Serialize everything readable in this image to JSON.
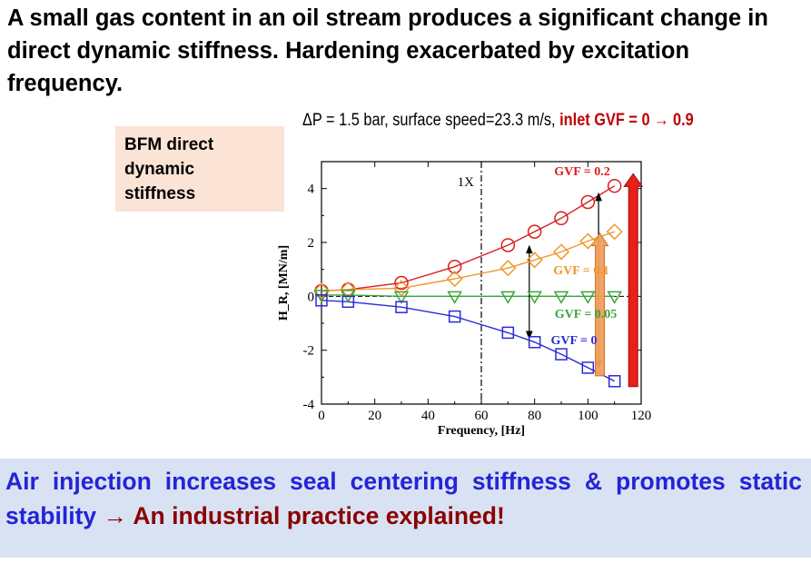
{
  "slide_title": "A small gas content in an oil stream produces a significant change in direct dynamic stiffness. Hardening exacerbated by excitation frequency.",
  "subtitle": {
    "prefix": "ΔP = 1.5 bar, surface speed=23.3 m/s, ",
    "highlight": "inlet GVF = 0 → 0.9"
  },
  "label_box": {
    "line1": "BFM direct",
    "line2": "dynamic",
    "line3": "stiffness"
  },
  "footer": {
    "blue_text": "Air injection increases seal centering stiffness & promotes static stability ",
    "arrow": "→",
    "red_text": " An industrial practice explained!"
  },
  "colors": {
    "red": "#d81e1e",
    "orange": "#f0962d",
    "green": "#3aa53a",
    "blue": "#2b2bd6",
    "bigArrow": "#e8201a",
    "orangeArrow": "#f2a05a"
  },
  "chart_data": {
    "type": "line",
    "xlabel": "Frequency, [Hz]",
    "ylabel": "H_R, [MN/m]",
    "xlim": [
      0,
      120
    ],
    "ylim": [
      -4,
      5
    ],
    "xticks": [
      0,
      20,
      40,
      60,
      80,
      100,
      120
    ],
    "yticks": [
      -4,
      -2,
      0,
      2,
      4
    ],
    "vline": {
      "x": 60,
      "label": "1X"
    },
    "series": [
      {
        "name": "GVF = 0.2",
        "color": "#d81e1e",
        "marker": "circle",
        "x": [
          0,
          10,
          30,
          50,
          70,
          80,
          90,
          100,
          110
        ],
        "y": [
          0.2,
          0.25,
          0.5,
          1.1,
          1.9,
          2.4,
          2.9,
          3.5,
          4.1
        ]
      },
      {
        "name": "GVF = 0.1",
        "color": "#f0962d",
        "marker": "diamond",
        "x": [
          0,
          10,
          30,
          50,
          70,
          80,
          90,
          100,
          110
        ],
        "y": [
          0.2,
          0.25,
          0.3,
          0.65,
          1.05,
          1.35,
          1.65,
          2.05,
          2.4
        ]
      },
      {
        "name": "GVF = 0.05",
        "color": "#3aa53a",
        "marker": "triangle-down",
        "x": [
          0,
          10,
          30,
          50,
          70,
          80,
          90,
          100,
          110
        ],
        "y": [
          0.05,
          0.05,
          0.0,
          0.0,
          0.0,
          0.0,
          0.0,
          0.0,
          0.0
        ]
      },
      {
        "name": "GVF = 0",
        "color": "#2b2bd6",
        "marker": "square",
        "x": [
          0,
          10,
          30,
          50,
          70,
          80,
          90,
          100,
          110
        ],
        "y": [
          -0.15,
          -0.2,
          -0.4,
          -0.75,
          -1.35,
          -1.7,
          -2.15,
          -2.65,
          -3.15
        ]
      }
    ]
  }
}
